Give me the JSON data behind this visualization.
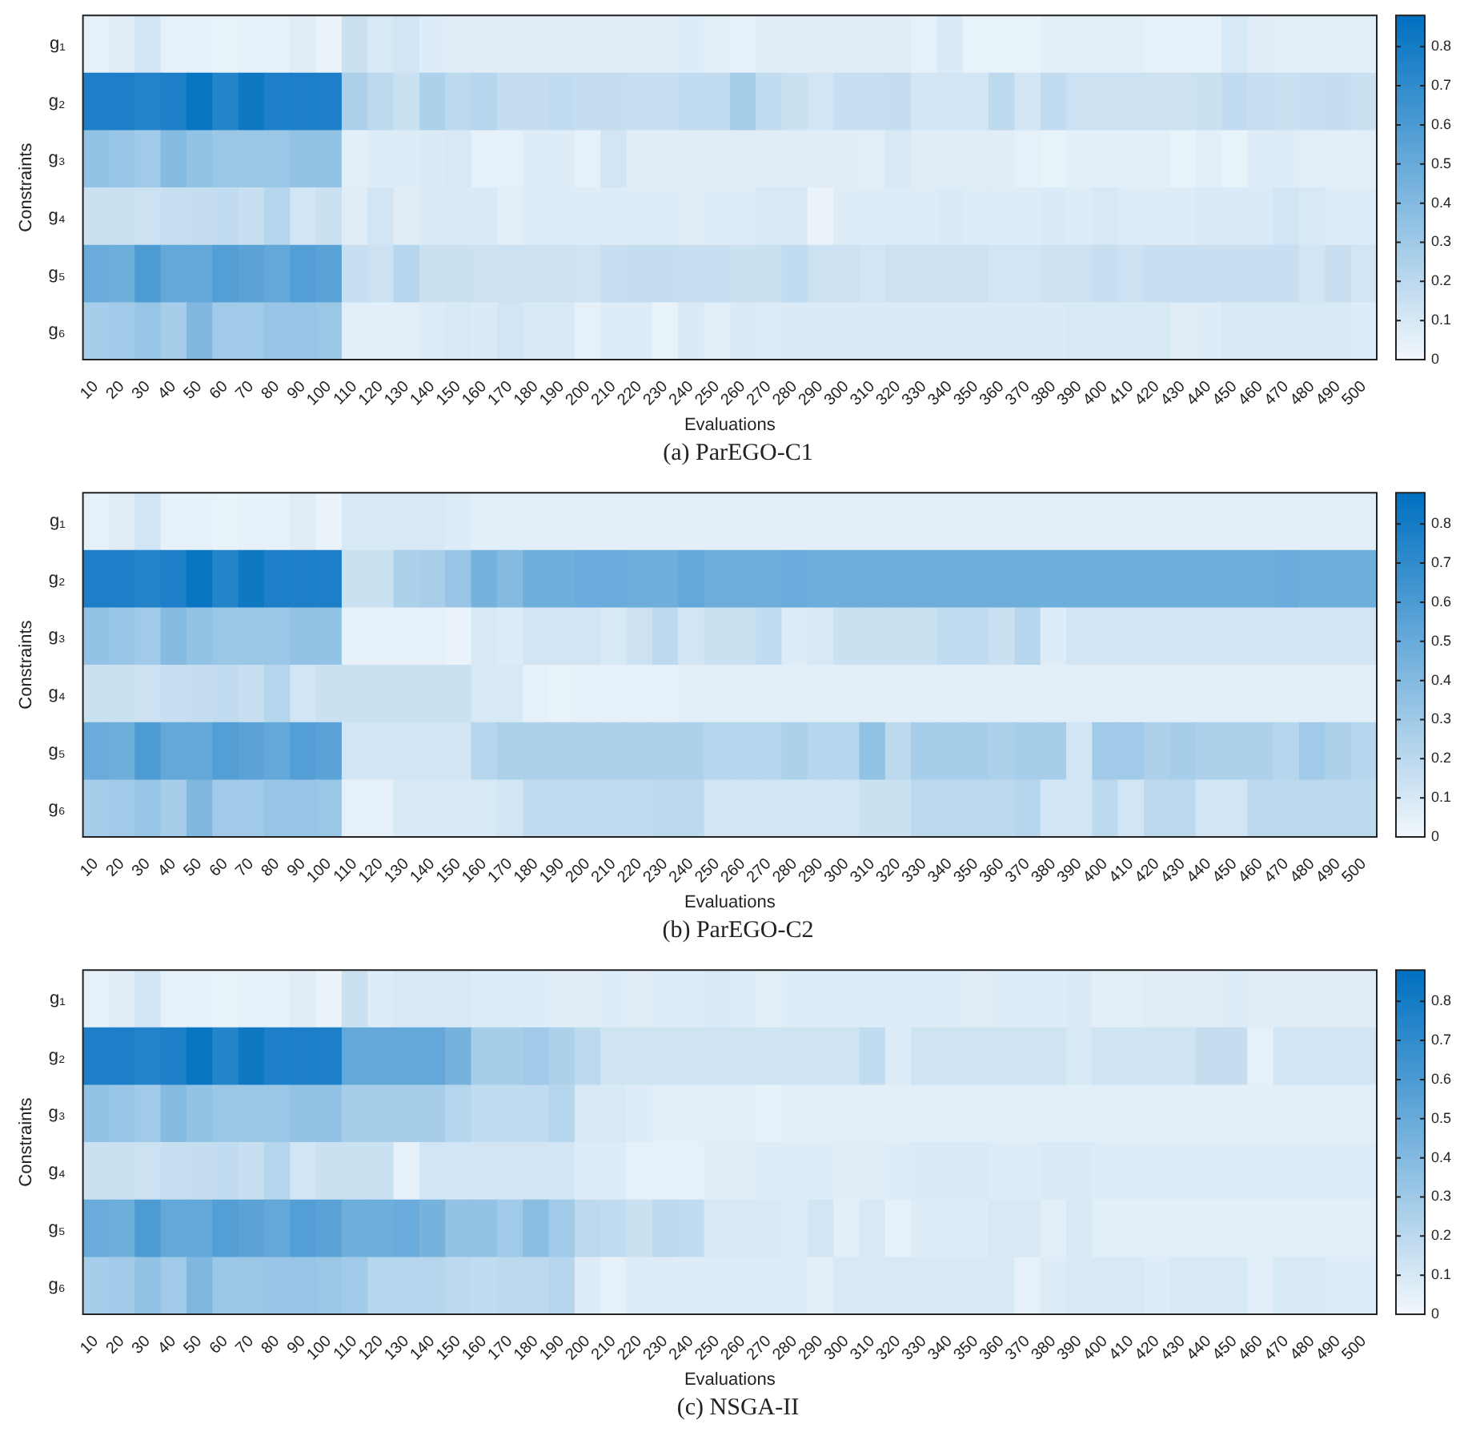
{
  "chart_data": [
    {
      "type": "heatmap",
      "title": "(a) ParEGO-C1",
      "xlabel": "Evaluations",
      "ylabel": "Constraints",
      "categories": [
        "10",
        "20",
        "30",
        "40",
        "50",
        "60",
        "70",
        "80",
        "90",
        "100",
        "110",
        "120",
        "130",
        "140",
        "150",
        "160",
        "170",
        "180",
        "190",
        "200",
        "210",
        "220",
        "230",
        "240",
        "250",
        "260",
        "270",
        "280",
        "290",
        "300",
        "310",
        "320",
        "330",
        "340",
        "350",
        "360",
        "370",
        "380",
        "390",
        "400",
        "410",
        "420",
        "430",
        "440",
        "450",
        "460",
        "470",
        "480",
        "490",
        "500"
      ],
      "y_categories": [
        "g₁",
        "g₂",
        "g₃",
        "g₄",
        "g₅",
        "g₆"
      ],
      "clim": [
        0,
        0.88
      ],
      "cticks": [
        0,
        0.1,
        0.2,
        0.3,
        0.4,
        0.5,
        0.6,
        0.7,
        0.8
      ],
      "cells": [
        [
          0.05,
          0.07,
          0.12,
          0.05,
          0.05,
          0.04,
          0.05,
          0.05,
          0.07,
          0.03,
          0.15,
          0.1,
          0.12,
          0.08,
          0.07,
          0.07,
          0.07,
          0.07,
          0.07,
          0.07,
          0.07,
          0.07,
          0.07,
          0.08,
          0.06,
          0.05,
          0.07,
          0.07,
          0.07,
          0.07,
          0.07,
          0.07,
          0.05,
          0.09,
          0.04,
          0.04,
          0.04,
          0.06,
          0.06,
          0.06,
          0.06,
          0.05,
          0.05,
          0.05,
          0.1,
          0.07,
          0.06,
          0.06,
          0.06,
          0.06
        ],
        [
          0.78,
          0.78,
          0.75,
          0.78,
          0.85,
          0.75,
          0.83,
          0.78,
          0.78,
          0.78,
          0.25,
          0.2,
          0.15,
          0.25,
          0.2,
          0.22,
          0.17,
          0.17,
          0.18,
          0.17,
          0.17,
          0.16,
          0.16,
          0.18,
          0.18,
          0.28,
          0.18,
          0.15,
          0.12,
          0.16,
          0.16,
          0.17,
          0.12,
          0.12,
          0.12,
          0.2,
          0.12,
          0.18,
          0.14,
          0.14,
          0.14,
          0.14,
          0.14,
          0.15,
          0.18,
          0.16,
          0.15,
          0.16,
          0.17,
          0.15
        ],
        [
          0.35,
          0.33,
          0.3,
          0.4,
          0.35,
          0.32,
          0.32,
          0.32,
          0.35,
          0.35,
          0.06,
          0.08,
          0.08,
          0.09,
          0.1,
          0.05,
          0.05,
          0.08,
          0.08,
          0.05,
          0.12,
          0.07,
          0.07,
          0.07,
          0.07,
          0.07,
          0.07,
          0.07,
          0.07,
          0.07,
          0.06,
          0.1,
          0.07,
          0.07,
          0.07,
          0.07,
          0.05,
          0.04,
          0.06,
          0.06,
          0.06,
          0.06,
          0.04,
          0.06,
          0.04,
          0.08,
          0.08,
          0.06,
          0.06,
          0.06
        ],
        [
          0.15,
          0.15,
          0.14,
          0.16,
          0.17,
          0.18,
          0.16,
          0.22,
          0.12,
          0.15,
          0.07,
          0.12,
          0.07,
          0.09,
          0.09,
          0.09,
          0.06,
          0.08,
          0.08,
          0.08,
          0.08,
          0.08,
          0.08,
          0.07,
          0.08,
          0.08,
          0.1,
          0.1,
          0.03,
          0.08,
          0.08,
          0.08,
          0.08,
          0.09,
          0.08,
          0.08,
          0.08,
          0.09,
          0.08,
          0.1,
          0.08,
          0.08,
          0.08,
          0.09,
          0.09,
          0.09,
          0.12,
          0.1,
          0.08,
          0.08
        ],
        [
          0.5,
          0.48,
          0.6,
          0.52,
          0.52,
          0.58,
          0.55,
          0.52,
          0.58,
          0.55,
          0.16,
          0.14,
          0.22,
          0.15,
          0.15,
          0.14,
          0.14,
          0.14,
          0.14,
          0.13,
          0.16,
          0.17,
          0.17,
          0.16,
          0.16,
          0.15,
          0.15,
          0.18,
          0.14,
          0.14,
          0.12,
          0.14,
          0.14,
          0.14,
          0.14,
          0.12,
          0.12,
          0.14,
          0.14,
          0.16,
          0.14,
          0.16,
          0.16,
          0.16,
          0.16,
          0.16,
          0.16,
          0.12,
          0.16,
          0.12
        ],
        [
          0.28,
          0.3,
          0.33,
          0.28,
          0.42,
          0.3,
          0.3,
          0.33,
          0.33,
          0.32,
          0.06,
          0.06,
          0.06,
          0.08,
          0.1,
          0.09,
          0.12,
          0.1,
          0.1,
          0.05,
          0.08,
          0.08,
          0.04,
          0.09,
          0.06,
          0.09,
          0.08,
          0.09,
          0.09,
          0.09,
          0.09,
          0.09,
          0.09,
          0.09,
          0.09,
          0.09,
          0.09,
          0.09,
          0.1,
          0.1,
          0.1,
          0.1,
          0.07,
          0.08,
          0.1,
          0.1,
          0.1,
          0.1,
          0.1,
          0.08
        ]
      ]
    },
    {
      "type": "heatmap",
      "title": "(b) ParEGO-C2",
      "xlabel": "Evaluations",
      "ylabel": "Constraints",
      "categories": [
        "10",
        "20",
        "30",
        "40",
        "50",
        "60",
        "70",
        "80",
        "90",
        "100",
        "110",
        "120",
        "130",
        "140",
        "150",
        "160",
        "170",
        "180",
        "190",
        "200",
        "210",
        "220",
        "230",
        "240",
        "250",
        "260",
        "270",
        "280",
        "290",
        "300",
        "310",
        "320",
        "330",
        "340",
        "350",
        "360",
        "370",
        "380",
        "390",
        "400",
        "410",
        "420",
        "430",
        "440",
        "450",
        "460",
        "470",
        "480",
        "490",
        "500"
      ],
      "y_categories": [
        "g₁",
        "g₂",
        "g₃",
        "g₄",
        "g₅",
        "g₆"
      ],
      "clim": [
        0,
        0.88
      ],
      "cticks": [
        0,
        0.1,
        0.2,
        0.3,
        0.4,
        0.5,
        0.6,
        0.7,
        0.8
      ],
      "cells": [
        [
          0.05,
          0.07,
          0.12,
          0.05,
          0.05,
          0.04,
          0.05,
          0.05,
          0.07,
          0.03,
          0.1,
          0.1,
          0.1,
          0.1,
          0.08,
          0.06,
          0.06,
          0.06,
          0.06,
          0.06,
          0.06,
          0.06,
          0.06,
          0.06,
          0.06,
          0.06,
          0.06,
          0.06,
          0.06,
          0.06,
          0.06,
          0.06,
          0.06,
          0.06,
          0.06,
          0.06,
          0.06,
          0.06,
          0.06,
          0.06,
          0.06,
          0.06,
          0.06,
          0.06,
          0.06,
          0.06,
          0.06,
          0.06,
          0.06,
          0.06
        ],
        [
          0.78,
          0.78,
          0.75,
          0.78,
          0.85,
          0.75,
          0.83,
          0.78,
          0.78,
          0.78,
          0.15,
          0.15,
          0.25,
          0.27,
          0.33,
          0.45,
          0.4,
          0.48,
          0.48,
          0.5,
          0.5,
          0.48,
          0.48,
          0.52,
          0.48,
          0.48,
          0.48,
          0.5,
          0.48,
          0.48,
          0.48,
          0.48,
          0.48,
          0.48,
          0.48,
          0.48,
          0.48,
          0.48,
          0.48,
          0.48,
          0.48,
          0.48,
          0.48,
          0.48,
          0.48,
          0.48,
          0.5,
          0.48,
          0.48,
          0.48
        ],
        [
          0.35,
          0.33,
          0.3,
          0.4,
          0.35,
          0.32,
          0.32,
          0.32,
          0.35,
          0.35,
          0.05,
          0.05,
          0.05,
          0.05,
          0.03,
          0.1,
          0.08,
          0.12,
          0.12,
          0.12,
          0.1,
          0.14,
          0.2,
          0.12,
          0.15,
          0.15,
          0.18,
          0.08,
          0.1,
          0.15,
          0.15,
          0.15,
          0.15,
          0.18,
          0.18,
          0.15,
          0.22,
          0.08,
          0.12,
          0.12,
          0.12,
          0.12,
          0.12,
          0.12,
          0.12,
          0.12,
          0.12,
          0.12,
          0.12,
          0.12
        ],
        [
          0.15,
          0.15,
          0.14,
          0.16,
          0.17,
          0.18,
          0.16,
          0.22,
          0.12,
          0.15,
          0.15,
          0.15,
          0.15,
          0.15,
          0.15,
          0.1,
          0.1,
          0.05,
          0.04,
          0.05,
          0.05,
          0.05,
          0.05,
          0.06,
          0.06,
          0.06,
          0.06,
          0.06,
          0.06,
          0.06,
          0.06,
          0.06,
          0.06,
          0.06,
          0.06,
          0.06,
          0.06,
          0.06,
          0.06,
          0.06,
          0.06,
          0.06,
          0.06,
          0.06,
          0.06,
          0.06,
          0.06,
          0.06,
          0.06,
          0.06
        ],
        [
          0.5,
          0.48,
          0.6,
          0.52,
          0.52,
          0.58,
          0.55,
          0.52,
          0.58,
          0.55,
          0.12,
          0.12,
          0.12,
          0.12,
          0.12,
          0.22,
          0.25,
          0.25,
          0.25,
          0.25,
          0.25,
          0.25,
          0.25,
          0.25,
          0.22,
          0.22,
          0.22,
          0.25,
          0.22,
          0.22,
          0.35,
          0.2,
          0.28,
          0.28,
          0.28,
          0.25,
          0.28,
          0.28,
          0.12,
          0.3,
          0.3,
          0.25,
          0.28,
          0.25,
          0.25,
          0.25,
          0.22,
          0.3,
          0.25,
          0.22
        ],
        [
          0.28,
          0.3,
          0.33,
          0.28,
          0.42,
          0.3,
          0.3,
          0.33,
          0.33,
          0.32,
          0.05,
          0.05,
          0.1,
          0.1,
          0.1,
          0.1,
          0.12,
          0.18,
          0.18,
          0.18,
          0.18,
          0.18,
          0.2,
          0.2,
          0.12,
          0.12,
          0.12,
          0.12,
          0.12,
          0.12,
          0.15,
          0.15,
          0.2,
          0.2,
          0.2,
          0.2,
          0.22,
          0.12,
          0.12,
          0.2,
          0.12,
          0.2,
          0.2,
          0.12,
          0.12,
          0.2,
          0.2,
          0.2,
          0.2,
          0.2
        ]
      ]
    },
    {
      "type": "heatmap",
      "title": "(c) NSGA-II",
      "xlabel": "Evaluations",
      "ylabel": "Constraints",
      "categories": [
        "10",
        "20",
        "30",
        "40",
        "50",
        "60",
        "70",
        "80",
        "90",
        "100",
        "110",
        "120",
        "130",
        "140",
        "150",
        "160",
        "170",
        "180",
        "190",
        "200",
        "210",
        "220",
        "230",
        "240",
        "250",
        "260",
        "270",
        "280",
        "290",
        "300",
        "310",
        "320",
        "330",
        "340",
        "350",
        "360",
        "370",
        "380",
        "390",
        "400",
        "410",
        "420",
        "430",
        "440",
        "450",
        "460",
        "470",
        "480",
        "490",
        "500"
      ],
      "y_categories": [
        "g₁",
        "g₂",
        "g₃",
        "g₄",
        "g₅",
        "g₆"
      ],
      "clim": [
        0,
        0.88
      ],
      "cticks": [
        0,
        0.1,
        0.2,
        0.3,
        0.4,
        0.5,
        0.6,
        0.7,
        0.8
      ],
      "cells": [
        [
          0.05,
          0.07,
          0.12,
          0.05,
          0.05,
          0.04,
          0.05,
          0.05,
          0.07,
          0.03,
          0.15,
          0.08,
          0.1,
          0.1,
          0.1,
          0.08,
          0.08,
          0.08,
          0.07,
          0.07,
          0.08,
          0.07,
          0.08,
          0.08,
          0.1,
          0.08,
          0.06,
          0.08,
          0.08,
          0.08,
          0.08,
          0.08,
          0.08,
          0.08,
          0.07,
          0.08,
          0.08,
          0.08,
          0.09,
          0.06,
          0.06,
          0.07,
          0.07,
          0.07,
          0.08,
          0.07,
          0.07,
          0.07,
          0.07,
          0.07
        ],
        [
          0.78,
          0.78,
          0.75,
          0.78,
          0.85,
          0.75,
          0.83,
          0.78,
          0.78,
          0.78,
          0.52,
          0.52,
          0.52,
          0.52,
          0.45,
          0.28,
          0.28,
          0.3,
          0.25,
          0.2,
          0.13,
          0.13,
          0.13,
          0.13,
          0.13,
          0.13,
          0.13,
          0.13,
          0.13,
          0.13,
          0.18,
          0.08,
          0.13,
          0.13,
          0.13,
          0.13,
          0.13,
          0.13,
          0.1,
          0.13,
          0.13,
          0.13,
          0.13,
          0.17,
          0.17,
          0.05,
          0.12,
          0.12,
          0.12,
          0.12
        ],
        [
          0.35,
          0.33,
          0.3,
          0.4,
          0.35,
          0.32,
          0.32,
          0.32,
          0.35,
          0.35,
          0.28,
          0.28,
          0.28,
          0.28,
          0.22,
          0.18,
          0.18,
          0.18,
          0.22,
          0.1,
          0.1,
          0.08,
          0.06,
          0.06,
          0.06,
          0.06,
          0.05,
          0.06,
          0.06,
          0.06,
          0.06,
          0.06,
          0.06,
          0.06,
          0.06,
          0.06,
          0.06,
          0.06,
          0.06,
          0.06,
          0.06,
          0.06,
          0.06,
          0.06,
          0.06,
          0.06,
          0.06,
          0.06,
          0.06,
          0.06
        ],
        [
          0.15,
          0.15,
          0.14,
          0.16,
          0.17,
          0.18,
          0.16,
          0.22,
          0.12,
          0.15,
          0.15,
          0.15,
          0.05,
          0.12,
          0.12,
          0.12,
          0.12,
          0.12,
          0.12,
          0.08,
          0.08,
          0.05,
          0.05,
          0.05,
          0.07,
          0.07,
          0.08,
          0.08,
          0.08,
          0.07,
          0.07,
          0.08,
          0.09,
          0.09,
          0.09,
          0.08,
          0.08,
          0.09,
          0.09,
          0.08,
          0.08,
          0.08,
          0.08,
          0.08,
          0.08,
          0.08,
          0.08,
          0.08,
          0.08,
          0.08
        ],
        [
          0.5,
          0.48,
          0.6,
          0.52,
          0.52,
          0.58,
          0.55,
          0.52,
          0.58,
          0.55,
          0.48,
          0.48,
          0.5,
          0.45,
          0.35,
          0.35,
          0.3,
          0.38,
          0.3,
          0.2,
          0.18,
          0.15,
          0.2,
          0.18,
          0.1,
          0.1,
          0.1,
          0.08,
          0.12,
          0.06,
          0.1,
          0.05,
          0.08,
          0.08,
          0.08,
          0.1,
          0.1,
          0.06,
          0.1,
          0.06,
          0.06,
          0.06,
          0.06,
          0.06,
          0.06,
          0.06,
          0.06,
          0.06,
          0.06,
          0.06
        ],
        [
          0.28,
          0.3,
          0.35,
          0.3,
          0.42,
          0.32,
          0.32,
          0.33,
          0.33,
          0.32,
          0.3,
          0.22,
          0.22,
          0.22,
          0.2,
          0.18,
          0.2,
          0.2,
          0.22,
          0.08,
          0.05,
          0.08,
          0.08,
          0.08,
          0.08,
          0.08,
          0.08,
          0.08,
          0.06,
          0.1,
          0.1,
          0.1,
          0.1,
          0.1,
          0.1,
          0.1,
          0.05,
          0.08,
          0.1,
          0.1,
          0.1,
          0.08,
          0.1,
          0.1,
          0.1,
          0.06,
          0.1,
          0.1,
          0.08,
          0.08
        ]
      ]
    }
  ]
}
